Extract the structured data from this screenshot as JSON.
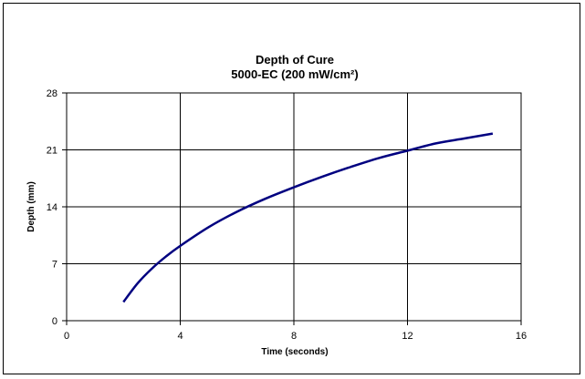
{
  "chart_data": {
    "type": "line",
    "title": "Depth of Cure",
    "subtitle": "5000-EC (200 mW/cm²)",
    "xlabel": "Time (seconds)",
    "ylabel": "Depth (mm)",
    "xlim": [
      0,
      16
    ],
    "ylim": [
      0,
      28
    ],
    "xticks": [
      0,
      4,
      8,
      12,
      16
    ],
    "yticks": [
      0,
      7,
      14,
      21,
      28
    ],
    "grid": true,
    "series": [
      {
        "color": "#000080",
        "x": [
          2,
          2.5,
          3,
          3.5,
          4,
          5,
          6,
          7,
          8,
          9,
          10,
          11,
          12,
          13,
          14,
          15
        ],
        "y": [
          2.3,
          4.6,
          6.4,
          7.9,
          9.2,
          11.5,
          13.4,
          15.0,
          16.4,
          17.7,
          18.9,
          20.0,
          20.9,
          21.8,
          22.4,
          23.0
        ]
      }
    ]
  }
}
